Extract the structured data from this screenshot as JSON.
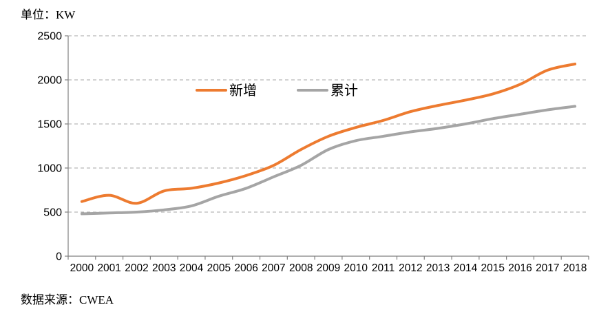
{
  "chart_data": {
    "type": "line",
    "unit_label": "单位：KW",
    "source_label": "数据来源：CWEA",
    "title": "",
    "xlabel": "",
    "ylabel": "KW",
    "categories": [
      2000,
      2001,
      2002,
      2003,
      2004,
      2005,
      2006,
      2007,
      2008,
      2009,
      2010,
      2011,
      2012,
      2013,
      2014,
      2015,
      2016,
      2017,
      2018
    ],
    "series": [
      {
        "name": "新增",
        "color": "#ED7B30",
        "values": [
          620,
          690,
          600,
          740,
          770,
          830,
          915,
          1030,
          1210,
          1360,
          1460,
          1540,
          1640,
          1710,
          1770,
          1840,
          1950,
          2110,
          2180
        ]
      },
      {
        "name": "累计",
        "color": "#A5A5A5",
        "values": [
          480,
          490,
          500,
          525,
          570,
          680,
          770,
          900,
          1030,
          1210,
          1310,
          1360,
          1410,
          1450,
          1500,
          1560,
          1610,
          1660,
          1700
        ]
      }
    ],
    "y_ticks": [
      0,
      500,
      1000,
      1500,
      2000,
      2500
    ],
    "ylim": [
      0,
      2500
    ],
    "grid": "horizontal-dashed",
    "legend_position": "inside-top-center",
    "line_style": "smooth",
    "colors": {
      "grid": "#A6A6A6",
      "axis": "#808080",
      "text": "#000000"
    }
  }
}
